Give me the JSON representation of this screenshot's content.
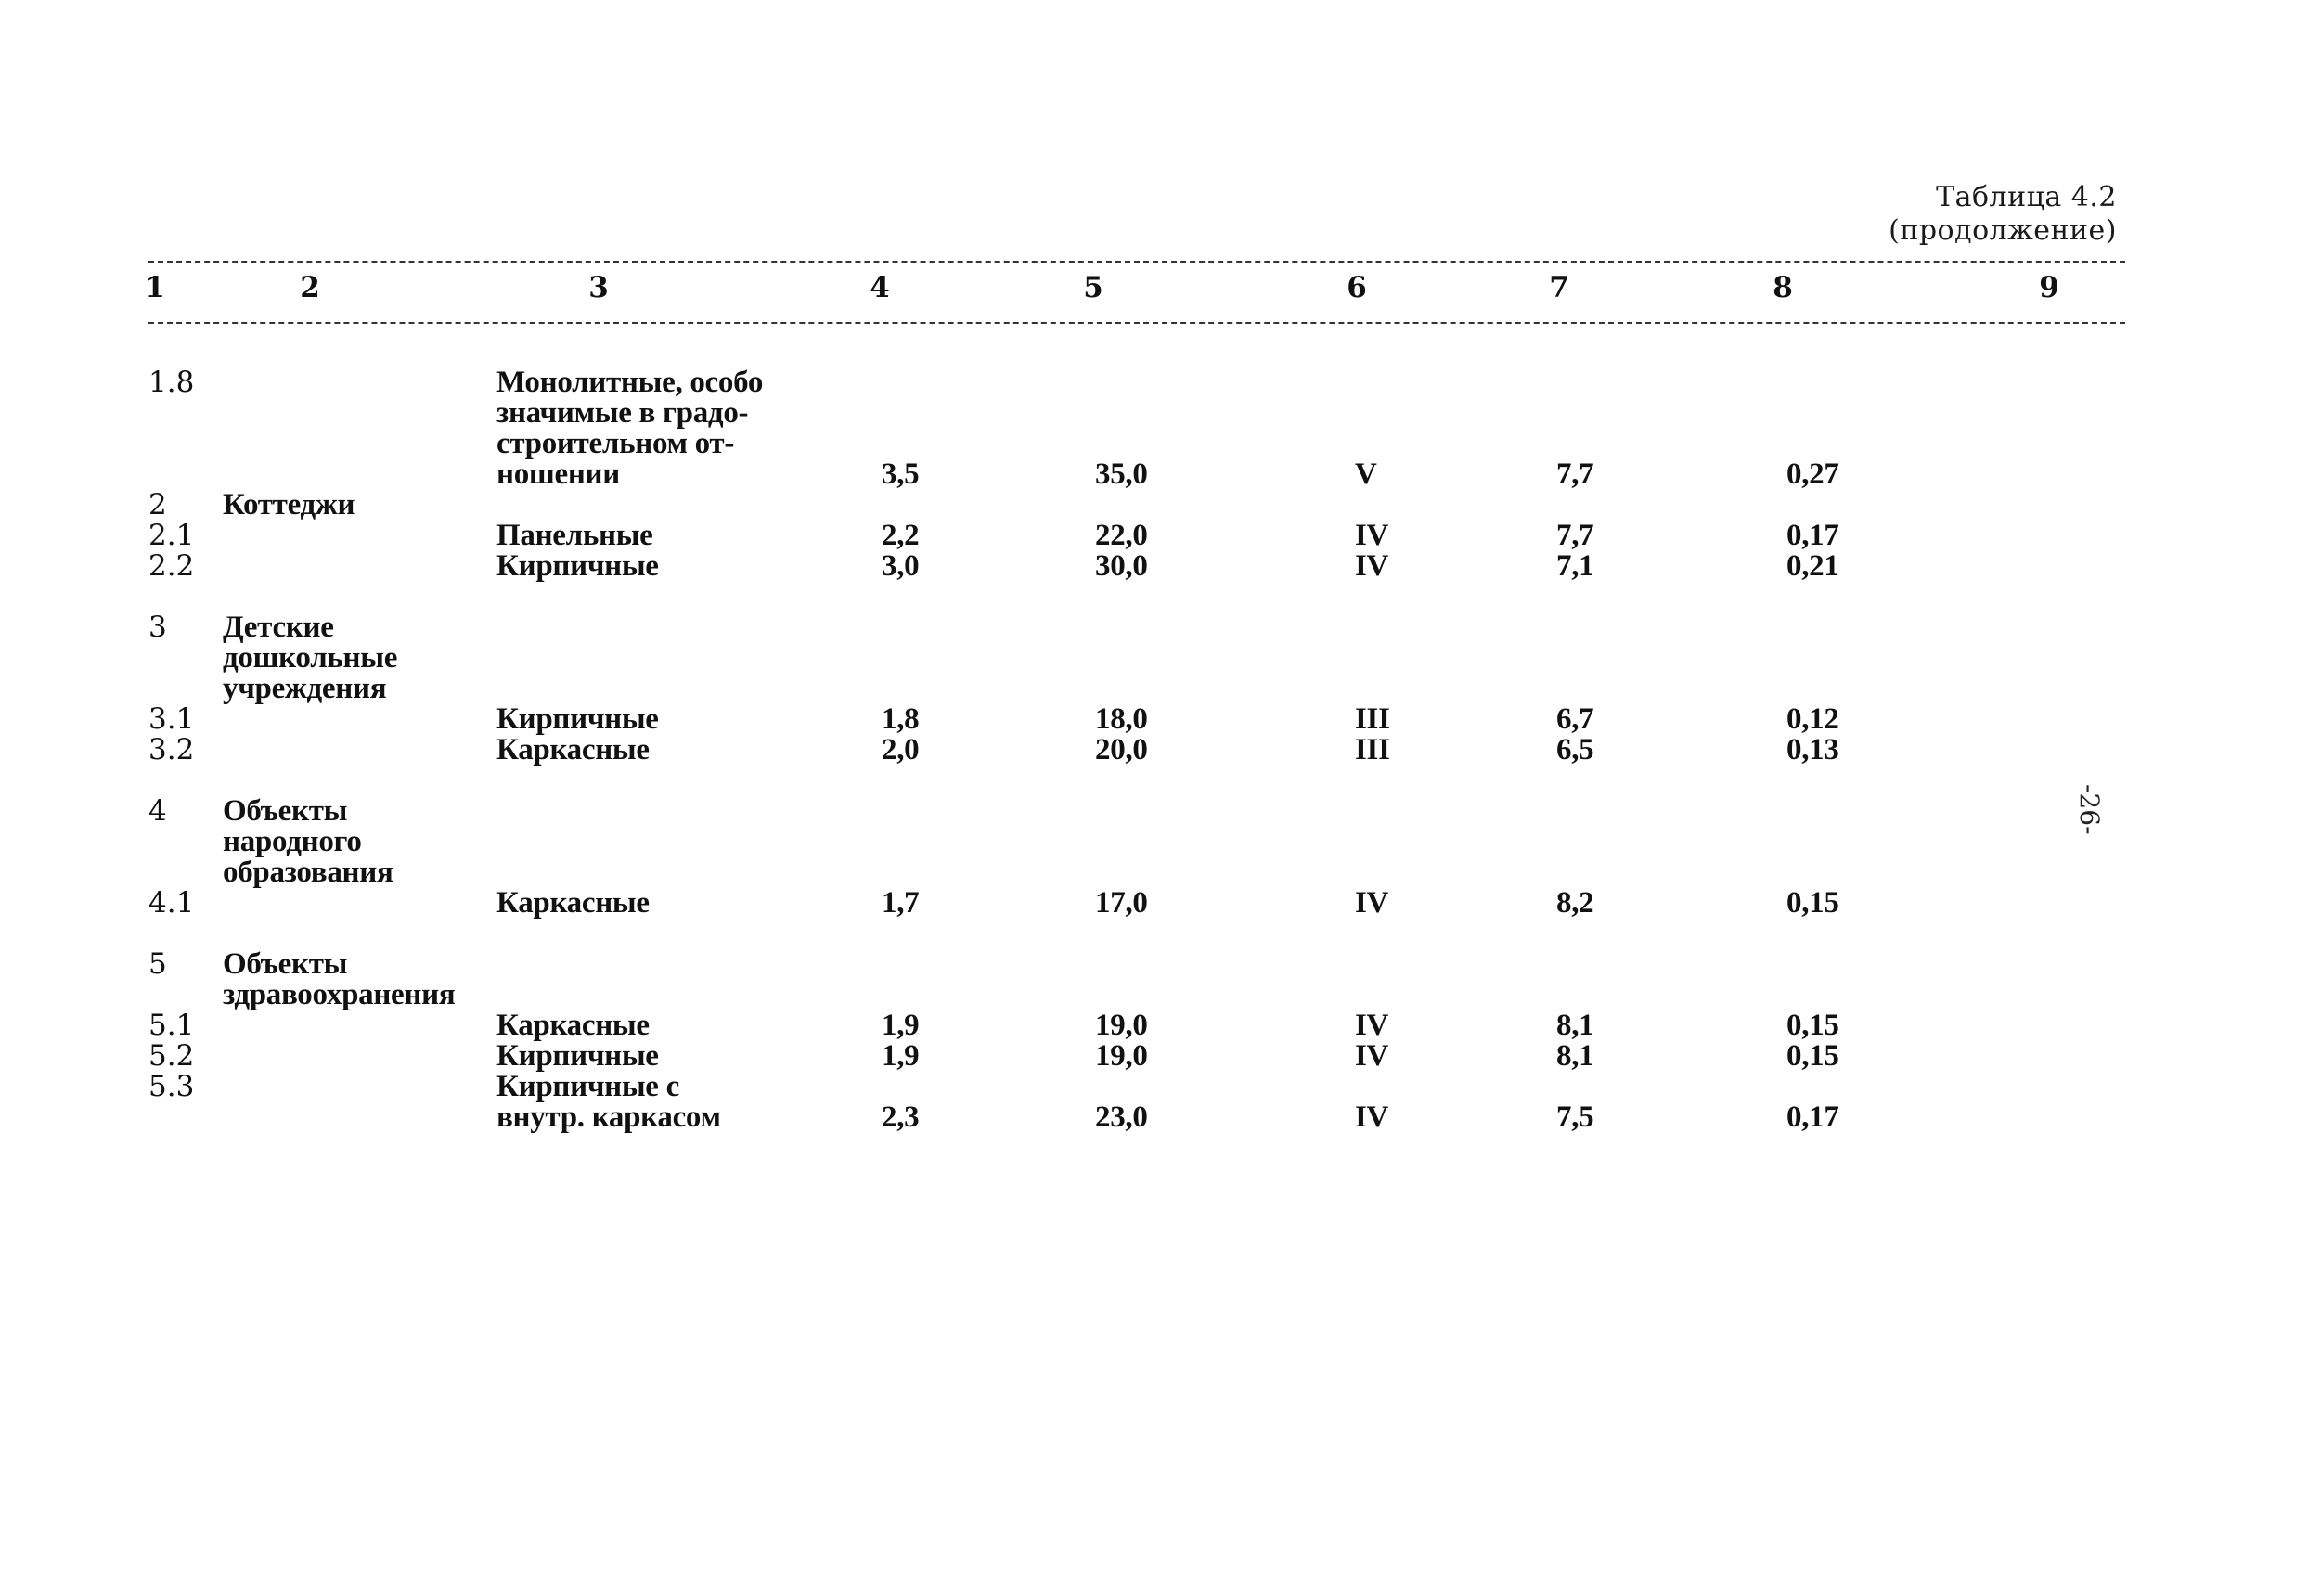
{
  "caption": {
    "line1": "Таблица 4.2",
    "line2": "(продолжение)"
  },
  "columns": [
    "1",
    "2",
    "3",
    "4",
    "5",
    "6",
    "7",
    "8",
    "9"
  ],
  "rows": [
    {
      "no": "1.8",
      "group": "",
      "type": [
        "Монолитные, особо",
        "значимые в градо-",
        "строительном от-",
        "ношении"
      ],
      "c4": "3,5",
      "c5": "35,0",
      "c6": "V",
      "c7": "7,7",
      "c8": "0,27"
    },
    {
      "no": "2",
      "group": [
        "Коттеджи"
      ],
      "type": [],
      "c4": "",
      "c5": "",
      "c6": "",
      "c7": "",
      "c8": ""
    },
    {
      "no": "2.1",
      "group": "",
      "type": [
        "Панельные"
      ],
      "c4": "2,2",
      "c5": "22,0",
      "c6": "IV",
      "c7": "7,7",
      "c8": "0,17"
    },
    {
      "no": "2.2",
      "group": "",
      "type": [
        "Кирпичные"
      ],
      "c4": "3,0",
      "c5": "30,0",
      "c6": "IV",
      "c7": "7,1",
      "c8": "0,21"
    },
    {
      "no": "3",
      "group": [
        "Детские",
        "дошкольные",
        "учреждения"
      ],
      "type": [],
      "c4": "",
      "c5": "",
      "c6": "",
      "c7": "",
      "c8": ""
    },
    {
      "no": "3.1",
      "group": "",
      "type": [
        "Кирпичные"
      ],
      "c4": "1,8",
      "c5": "18,0",
      "c6": "III",
      "c7": "6,7",
      "c8": "0,12"
    },
    {
      "no": "3.2",
      "group": "",
      "type": [
        "Каркасные"
      ],
      "c4": "2,0",
      "c5": "20,0",
      "c6": "III",
      "c7": "6,5",
      "c8": "0,13"
    },
    {
      "no": "4",
      "group": [
        "Объекты",
        "народного",
        "образования"
      ],
      "type": [],
      "c4": "",
      "c5": "",
      "c6": "",
      "c7": "",
      "c8": ""
    },
    {
      "no": "4.1",
      "group": "",
      "type": [
        "Каркасные"
      ],
      "c4": "1,7",
      "c5": "17,0",
      "c6": "IV",
      "c7": "8,2",
      "c8": "0,15"
    },
    {
      "no": "5",
      "group": [
        "Объекты",
        "здравоохранения"
      ],
      "type": [],
      "c4": "",
      "c5": "",
      "c6": "",
      "c7": "",
      "c8": ""
    },
    {
      "no": "5.1",
      "group": "",
      "type": [
        "Каркасные"
      ],
      "c4": "1,9",
      "c5": "19,0",
      "c6": "IV",
      "c7": "8,1",
      "c8": "0,15"
    },
    {
      "no": "5.2",
      "group": "",
      "type": [
        "Кирпичные"
      ],
      "c4": "1,9",
      "c5": "19,0",
      "c6": "IV",
      "c7": "8,1",
      "c8": "0,15"
    },
    {
      "no": "5.3",
      "group": "",
      "type": [
        "Кирпичные с",
        "внутр. каркасом"
      ],
      "c4": "2,3",
      "c5": "23,0",
      "c6": "IV",
      "c7": "7,5",
      "c8": "0,17"
    }
  ],
  "side_text": "-26-"
}
